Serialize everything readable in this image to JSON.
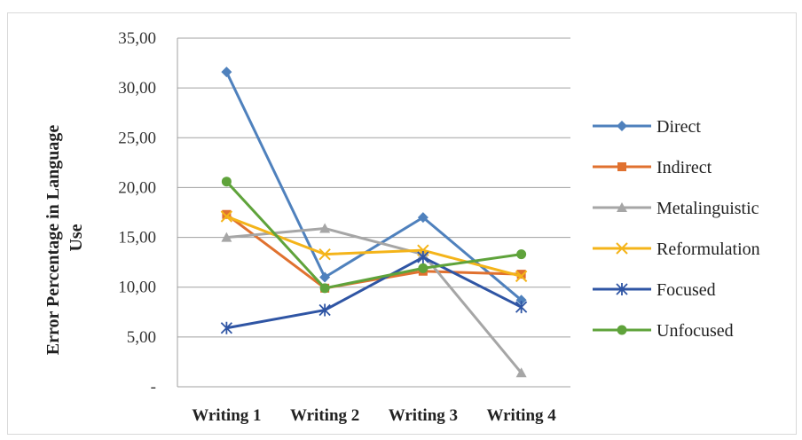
{
  "chart_data": {
    "type": "line",
    "title": "",
    "xlabel": "",
    "ylabel_lines": [
      "Error Percentage in Language",
      "Use"
    ],
    "categories": [
      "Writing 1",
      "Writing 2",
      "Writing 3",
      "Writing 4"
    ],
    "ylim": [
      0,
      35
    ],
    "y_ticks": [
      {
        "value": 0,
        "label": "-"
      },
      {
        "value": 5,
        "label": "5,00"
      },
      {
        "value": 10,
        "label": "10,00"
      },
      {
        "value": 15,
        "label": "15,00"
      },
      {
        "value": 20,
        "label": "20,00"
      },
      {
        "value": 25,
        "label": "25,00"
      },
      {
        "value": 30,
        "label": "30,00"
      },
      {
        "value": 35,
        "label": "35,00"
      }
    ],
    "grid": true,
    "legend_position": "right",
    "series": [
      {
        "name": "Direct",
        "color": "#4f81bd",
        "marker": "diamond",
        "values": [
          31.6,
          11.0,
          17.0,
          8.7
        ]
      },
      {
        "name": "Indirect",
        "color": "#e0712f",
        "marker": "square",
        "values": [
          17.3,
          9.9,
          11.6,
          11.3
        ]
      },
      {
        "name": "Metalinguistic",
        "color": "#a6a6a6",
        "marker": "triangle",
        "values": [
          15.0,
          15.9,
          13.3,
          1.4
        ]
      },
      {
        "name": "Reformulation",
        "color": "#f4b41a",
        "marker": "x",
        "values": [
          17.1,
          13.3,
          13.7,
          11.1
        ]
      },
      {
        "name": "Focused",
        "color": "#2f55a4",
        "marker": "asterisk",
        "values": [
          5.9,
          7.7,
          13.0,
          8.0
        ]
      },
      {
        "name": "Unfocused",
        "color": "#5fa33b",
        "marker": "circle",
        "values": [
          20.6,
          9.9,
          11.9,
          13.3
        ]
      }
    ]
  }
}
